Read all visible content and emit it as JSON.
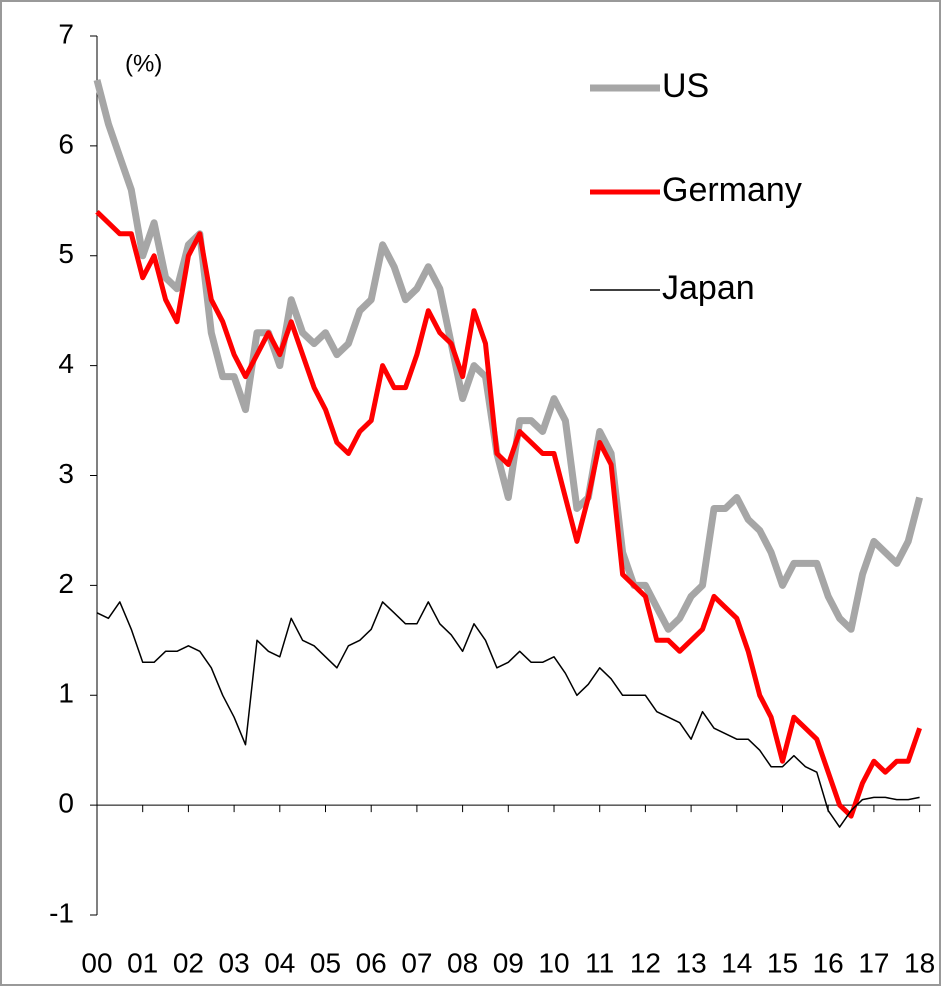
{
  "chart_data": {
    "type": "line",
    "y_label": "(%)",
    "categories": [
      "00",
      null,
      null,
      null,
      "01",
      null,
      null,
      null,
      "02",
      null,
      null,
      null,
      "03",
      null,
      null,
      null,
      "04",
      null,
      null,
      null,
      "05",
      null,
      null,
      null,
      "06",
      null,
      null,
      null,
      "07",
      null,
      null,
      null,
      "08",
      null,
      null,
      null,
      "09",
      null,
      null,
      null,
      "10",
      null,
      null,
      null,
      "11",
      null,
      null,
      null,
      "12",
      null,
      null,
      null,
      "13",
      null,
      null,
      null,
      "14",
      null,
      null,
      null,
      "15",
      null,
      null,
      null,
      "16",
      null,
      null,
      null,
      "17",
      null,
      null,
      null,
      "18"
    ],
    "series": [
      {
        "name": "US",
        "color": "#a6a6a6",
        "width": 7,
        "values": [
          6.6,
          6.2,
          5.9,
          5.6,
          5.0,
          5.3,
          4.8,
          4.7,
          5.1,
          5.2,
          4.3,
          3.9,
          3.9,
          3.6,
          4.3,
          4.3,
          4.0,
          4.6,
          4.3,
          4.2,
          4.3,
          4.1,
          4.2,
          4.5,
          4.6,
          5.1,
          4.9,
          4.6,
          4.7,
          4.9,
          4.7,
          4.2,
          3.7,
          4.0,
          3.9,
          3.2,
          2.8,
          3.5,
          3.5,
          3.4,
          3.7,
          3.5,
          2.7,
          2.8,
          3.4,
          3.2,
          2.3,
          2.0,
          2.0,
          1.8,
          1.6,
          1.7,
          1.9,
          2.0,
          2.7,
          2.7,
          2.8,
          2.6,
          2.5,
          2.3,
          2.0,
          2.2,
          2.2,
          2.2,
          1.9,
          1.7,
          1.6,
          2.1,
          2.4,
          2.3,
          2.2,
          2.4,
          2.8
        ]
      },
      {
        "name": "Germany",
        "color": "#ff0000",
        "width": 5,
        "values": [
          5.4,
          5.3,
          5.2,
          5.2,
          4.8,
          5.0,
          4.6,
          4.4,
          5.0,
          5.2,
          4.6,
          4.4,
          4.1,
          3.9,
          4.1,
          4.3,
          4.1,
          4.4,
          4.1,
          3.8,
          3.6,
          3.3,
          3.2,
          3.4,
          3.5,
          4.0,
          3.8,
          3.8,
          4.1,
          4.5,
          4.3,
          4.2,
          3.9,
          4.5,
          4.2,
          3.2,
          3.1,
          3.4,
          3.3,
          3.2,
          3.2,
          2.8,
          2.4,
          2.8,
          3.3,
          3.1,
          2.1,
          2.0,
          1.9,
          1.5,
          1.5,
          1.4,
          1.5,
          1.6,
          1.9,
          1.8,
          1.7,
          1.4,
          1.0,
          0.8,
          0.4,
          0.8,
          0.7,
          0.6,
          0.3,
          0.0,
          -0.1,
          0.2,
          0.4,
          0.3,
          0.4,
          0.4,
          0.7
        ]
      },
      {
        "name": "Japan",
        "color": "#000000",
        "width": 1.5,
        "values": [
          1.75,
          1.7,
          1.85,
          1.6,
          1.3,
          1.3,
          1.4,
          1.4,
          1.45,
          1.4,
          1.25,
          1.0,
          0.8,
          0.55,
          1.5,
          1.4,
          1.35,
          1.7,
          1.5,
          1.45,
          1.35,
          1.25,
          1.45,
          1.5,
          1.6,
          1.85,
          1.75,
          1.65,
          1.65,
          1.85,
          1.65,
          1.55,
          1.4,
          1.65,
          1.5,
          1.25,
          1.3,
          1.4,
          1.3,
          1.3,
          1.35,
          1.2,
          1.0,
          1.1,
          1.25,
          1.15,
          1.0,
          1.0,
          1.0,
          0.85,
          0.8,
          0.75,
          0.6,
          0.85,
          0.7,
          0.65,
          0.6,
          0.6,
          0.5,
          0.35,
          0.35,
          0.45,
          0.35,
          0.3,
          -0.05,
          -0.2,
          -0.05,
          0.05,
          0.07,
          0.07,
          0.05,
          0.05,
          0.07
        ]
      }
    ],
    "ylim": [
      -1,
      7
    ],
    "yticks": [
      -1,
      0,
      1,
      2,
      3,
      4,
      5,
      6,
      7
    ],
    "legend": "upper right"
  }
}
